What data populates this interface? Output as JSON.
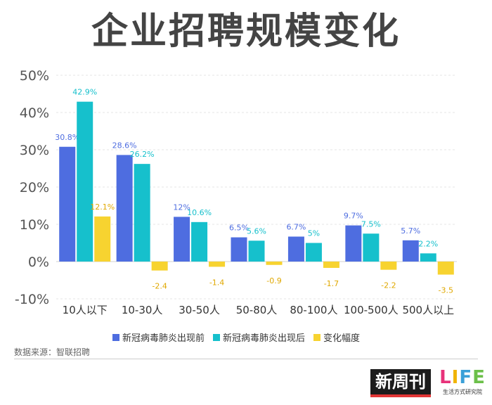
{
  "chart_data": {
    "type": "bar",
    "title": "企业招聘规模变化",
    "categories": [
      "10人以下",
      "10-30人",
      "30-50人",
      "50-80人",
      "80-100人",
      "100-500人",
      "500人以上"
    ],
    "series": [
      {
        "name": "新冠病毒肺炎出现前",
        "color": "#4e6de0",
        "values": [
          30.8,
          28.6,
          12,
          6.5,
          6.7,
          9.7,
          5.7
        ],
        "labels": [
          "30.8%",
          "28.6%",
          "12%",
          "6.5%",
          "6.7%",
          "9.7%",
          "5.7%"
        ]
      },
      {
        "name": "新冠病毒肺炎出现后",
        "color": "#16c0cc",
        "values": [
          42.9,
          26.2,
          10.6,
          5.6,
          5,
          7.5,
          2.2
        ],
        "labels": [
          "42.9%",
          "26.2%",
          "10.6%",
          "5.6%",
          "5%",
          "7.5%",
          "2.2%"
        ]
      },
      {
        "name": "变化幅度",
        "color": "#f7d330",
        "values": [
          12.1,
          -2.4,
          -1.4,
          -0.9,
          -1.7,
          -2.2,
          -3.5
        ],
        "labels": [
          "12.1%",
          "-2.4",
          "-1.4",
          "-0.9",
          "-1.7",
          "-2.2",
          "-3.5"
        ]
      }
    ],
    "ylim": [
      -10,
      50
    ],
    "yticks": [
      50,
      40,
      30,
      20,
      10,
      0,
      -10
    ],
    "ytick_labels": [
      "50%",
      "40%",
      "30%",
      "20%",
      "10%",
      "0%",
      "-10%"
    ],
    "xlabel": "",
    "ylabel": "",
    "grid": true,
    "legend_position": "bottom"
  },
  "source": "数据来源：智联招聘",
  "logos": {
    "xinzhoukan": "新周刊",
    "life_letters": [
      "L",
      "I",
      "F",
      "E"
    ],
    "life_sub": "生活方式研究院"
  }
}
